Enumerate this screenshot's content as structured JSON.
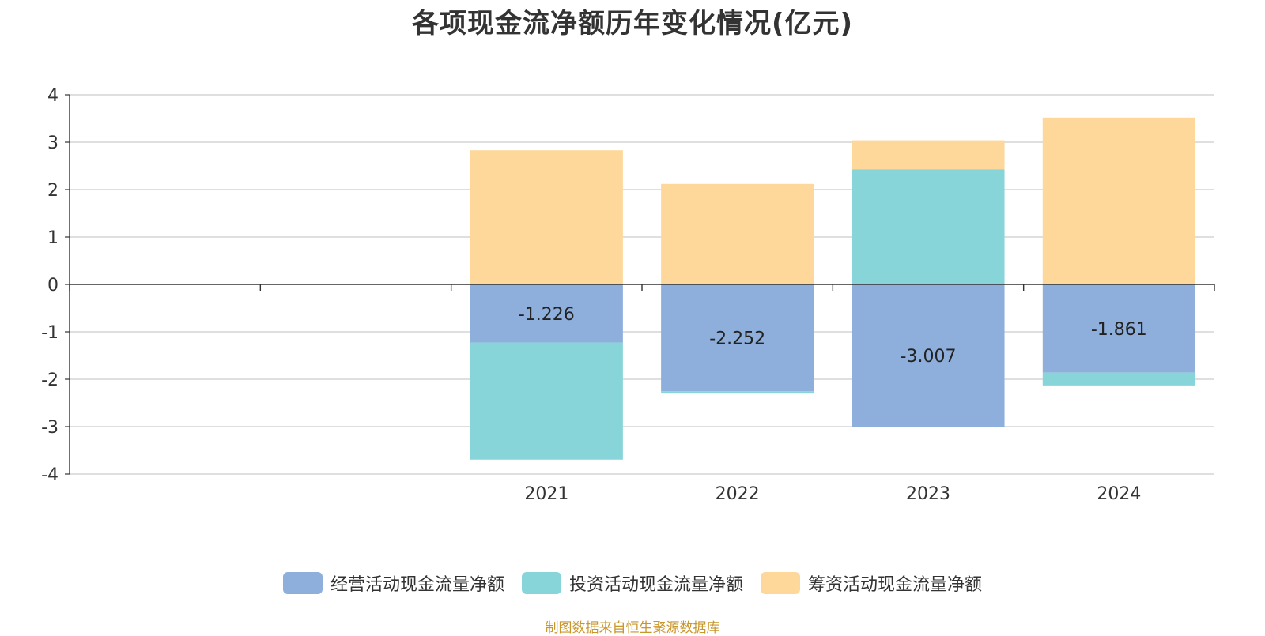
{
  "chart_data": {
    "type": "bar",
    "stacked": true,
    "title": "各项现金流净额历年变化情况(亿元)",
    "categories": [
      "2021",
      "2022",
      "2023",
      "2024"
    ],
    "ylim": [
      -4,
      4
    ],
    "yticks": [
      4,
      3,
      2,
      1,
      0,
      -1,
      -2,
      -3,
      -4
    ],
    "grid": true,
    "legend_position": "bottom",
    "series": [
      {
        "name": "经营活动现金流量净额",
        "color": "#8eaedb",
        "values": [
          -1.226,
          -2.252,
          -3.007,
          -1.861
        ],
        "show_labels": true
      },
      {
        "name": "投资活动现金流量净额",
        "color": "#87d5d8",
        "values": [
          -2.47,
          -0.05,
          2.43,
          -0.27
        ],
        "show_labels": false
      },
      {
        "name": "筹资活动现金流量净额",
        "color": "#fed89a",
        "values": [
          2.83,
          2.12,
          0.61,
          3.52
        ],
        "show_labels": false
      }
    ]
  },
  "source_note": "制图数据来自恒生聚源数据库"
}
